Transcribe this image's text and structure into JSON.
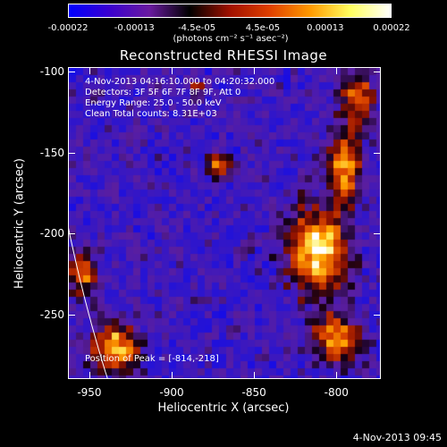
{
  "colorbar": {
    "ticks": [
      "-0.00022",
      "-0.00013",
      "-4.5e-05",
      "4.5e-05",
      "0.00013",
      "0.00022"
    ],
    "units": "(photons cm⁻² s⁻¹ asec⁻²)",
    "colors": [
      "#0000ff",
      "#3a00d0",
      "#6a1aa0",
      "#000000",
      "#a01000",
      "#e04000",
      "#ff9a00",
      "#ffff60",
      "#ffffff"
    ]
  },
  "title": "Reconstructed RHESSI Image",
  "info": {
    "time": "4-Nov-2013 04:16:10.000 to 04:20:32.000",
    "detectors": "Detectors: 3F 5F 6F 7F 8F 9F, Att 0",
    "energy": "Energy Range: 25.0 - 50.0 keV",
    "clean": "Clean     Total counts: 8.31E+03",
    "peak": "Position of Peak = [-814,-218]"
  },
  "axes": {
    "xlabel": "Heliocentric X (arcsec)",
    "ylabel": "Heliocentric Y (arcsec)",
    "xticks": [
      "-950",
      "-900",
      "-850",
      "-800"
    ],
    "yticks": [
      "-100",
      "-150",
      "-200",
      "-250"
    ]
  },
  "timestamp": "4-Nov-2013 09:45",
  "chart_data": {
    "type": "heatmap",
    "title": "Reconstructed RHESSI Image",
    "xlabel": "Heliocentric X (arcsec)",
    "ylabel": "Heliocentric Y (arcsec)",
    "xlim": [
      -963,
      -773
    ],
    "ylim": [
      -290,
      -97
    ],
    "xticks": [
      -950,
      -900,
      -850,
      -800
    ],
    "yticks": [
      -100,
      -150,
      -200,
      -250
    ],
    "colorbar_range": [
      -0.00022,
      0.00022
    ],
    "peak": [
      -814,
      -218
    ],
    "sources": [
      {
        "x": -812,
        "y": -210,
        "intensity": 1.0,
        "rx": 18,
        "ry": 26
      },
      {
        "x": -795,
        "y": -158,
        "intensity": 0.85,
        "rx": 10,
        "ry": 22
      },
      {
        "x": -788,
        "y": -115,
        "intensity": 0.7,
        "rx": 10,
        "ry": 14
      },
      {
        "x": -800,
        "y": -265,
        "intensity": 0.75,
        "rx": 14,
        "ry": 14
      },
      {
        "x": -935,
        "y": -270,
        "intensity": 0.9,
        "rx": 14,
        "ry": 14
      },
      {
        "x": -955,
        "y": -225,
        "intensity": 0.7,
        "rx": 8,
        "ry": 14
      },
      {
        "x": -872,
        "y": -158,
        "intensity": 0.75,
        "rx": 7,
        "ry": 7
      },
      {
        "x": -885,
        "y": -110,
        "intensity": 0.45,
        "rx": 6,
        "ry": 6
      }
    ],
    "limb": {
      "center_x": 0,
      "center_y": 0,
      "radius": 983
    }
  }
}
